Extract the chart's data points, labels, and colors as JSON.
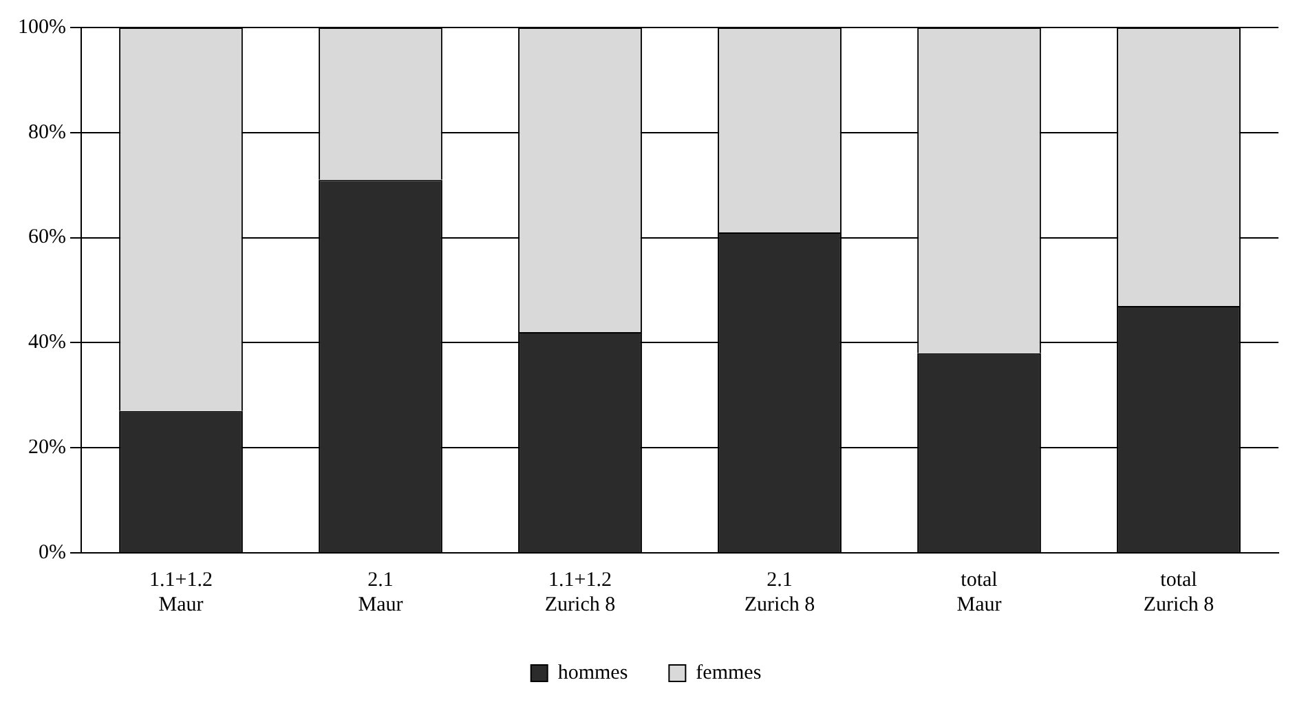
{
  "chart_data": {
    "type": "bar",
    "stacked": true,
    "categories": [
      "1.1+1.2\nMaur",
      "2.1\nMaur",
      "1.1+1.2\nZurich 8",
      "2.1\nZurich 8",
      "total\nMaur",
      "total\nZurich 8"
    ],
    "series": [
      {
        "name": "hommes",
        "color": "#2b2b2b",
        "values": [
          27,
          71,
          42,
          61,
          38,
          47
        ]
      },
      {
        "name": "femmes",
        "color": "#d9d9d9",
        "values": [
          73,
          29,
          58,
          39,
          62,
          53
        ]
      }
    ],
    "ylim": [
      0,
      100
    ],
    "yticks": [
      {
        "value": 0,
        "label": "0%"
      },
      {
        "value": 20,
        "label": "20%"
      },
      {
        "value": 40,
        "label": "40%"
      },
      {
        "value": 60,
        "label": "60%"
      },
      {
        "value": 80,
        "label": "80%"
      },
      {
        "value": 100,
        "label": "100%"
      }
    ],
    "grid": "y",
    "legend": "bottom"
  }
}
